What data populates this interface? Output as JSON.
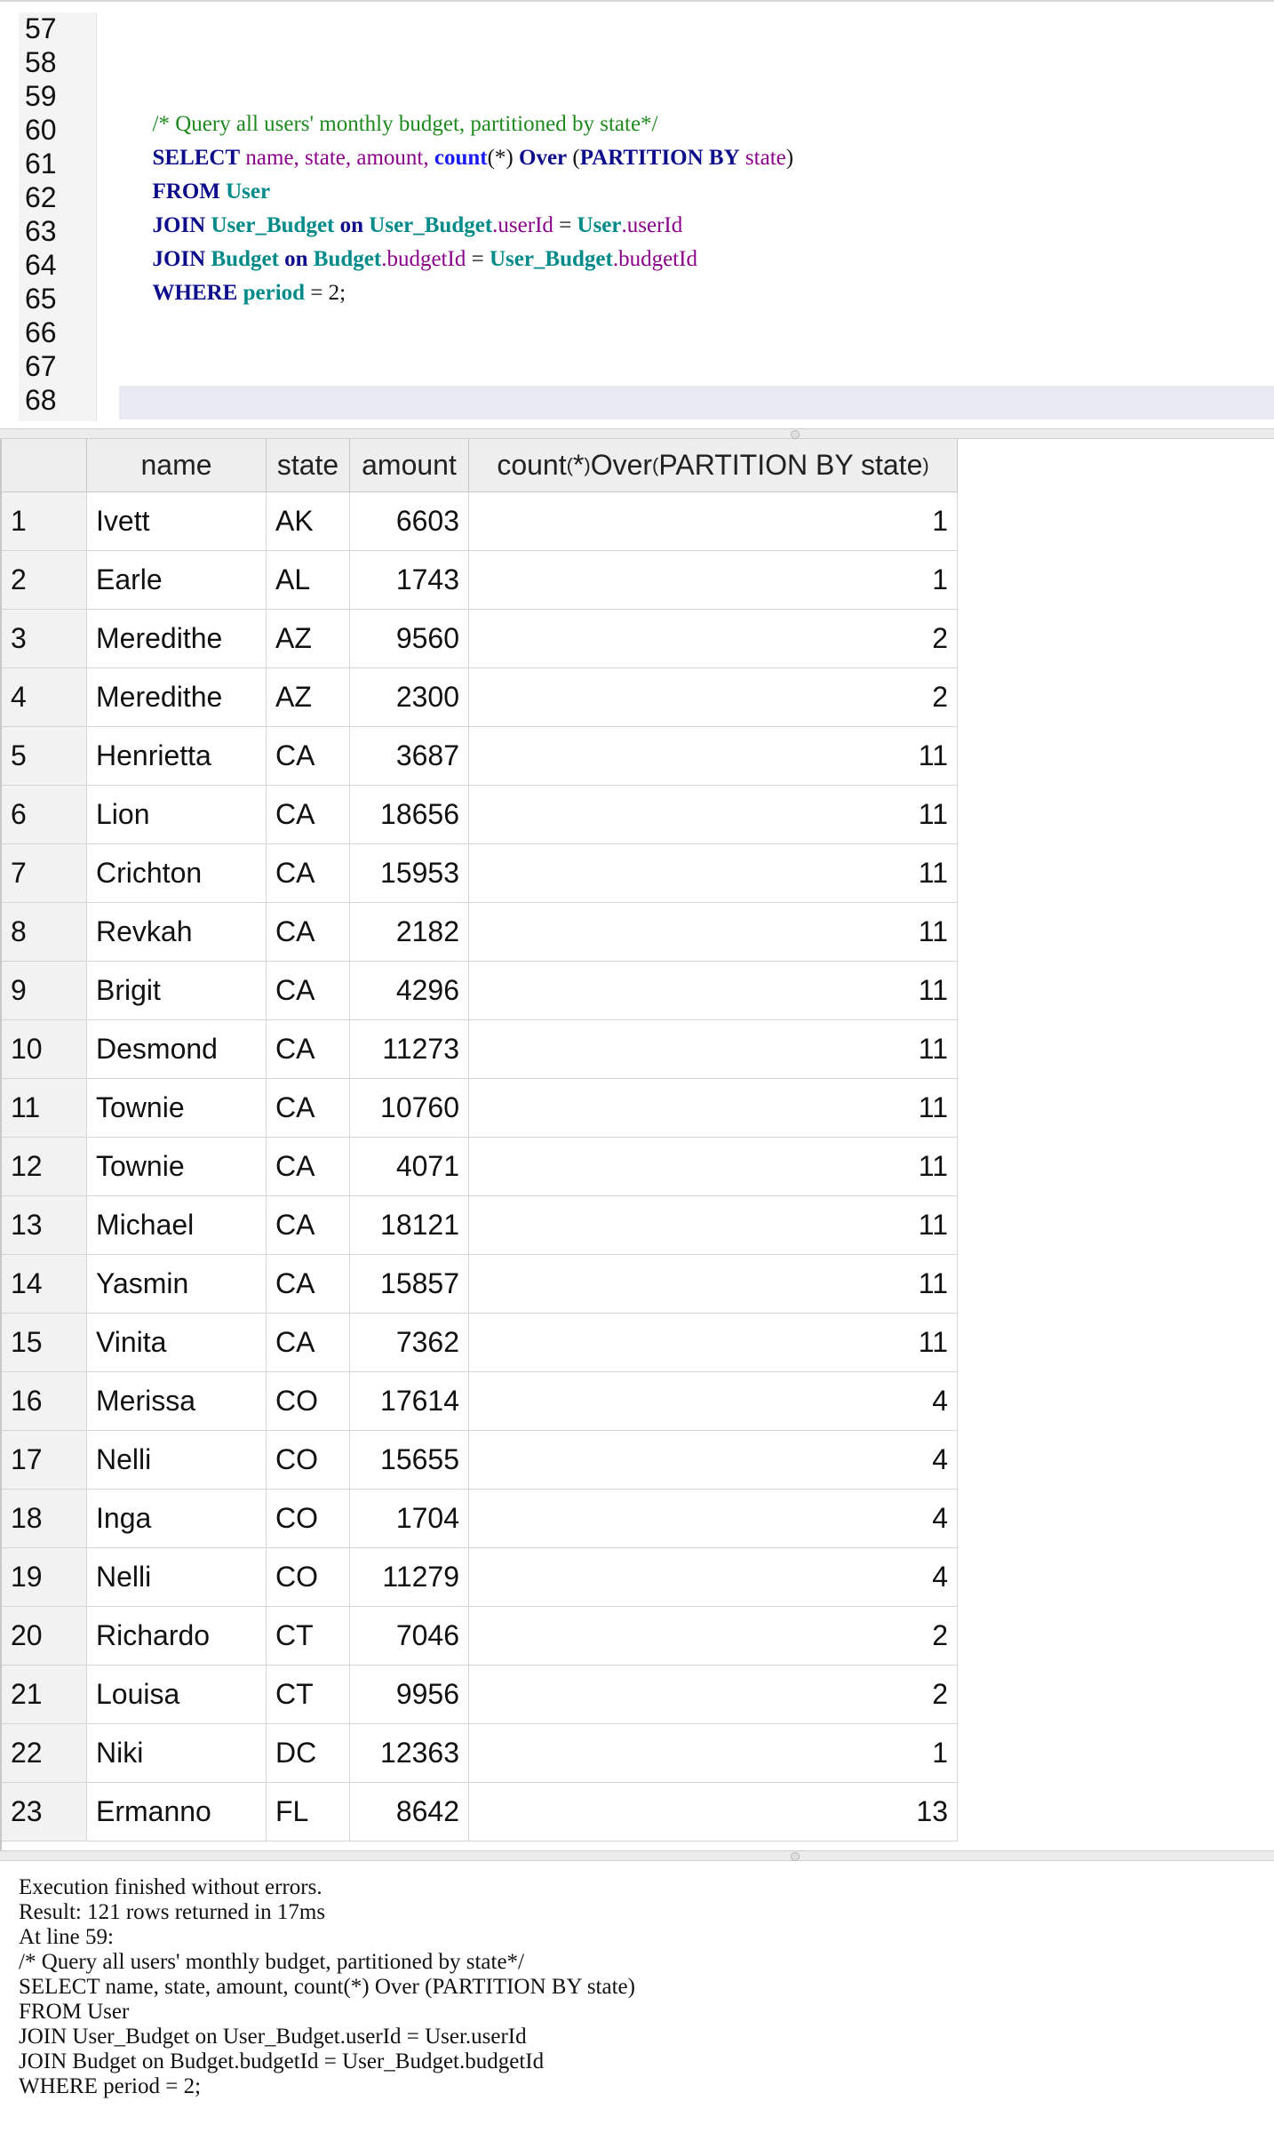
{
  "editor": {
    "line_numbers": [
      "57",
      "58",
      "59",
      "60",
      "61",
      "62",
      "63",
      "64",
      "65",
      "66",
      "67",
      "68"
    ],
    "code": {
      "comment": "/* Query all users' monthly budget, partitioned by state*/",
      "select_kw": "SELECT",
      "select_cols": " name, state, amount, ",
      "count_fn": "count",
      "count_args": "(*) ",
      "over_kw": "Over",
      "paren_open": " (",
      "partition_kw": "PARTITION BY",
      "partition_col": " state",
      "paren_close": ")",
      "from_kw": "FROM",
      "from_table": " User",
      "join_kw": "JOIN",
      "join1_table": " User_Budget",
      "on_kw": " on ",
      "join1_left_table": "User_Budget",
      "join1_left_col": ".userId",
      "eq": " = ",
      "join1_right_table": "User",
      "join1_right_col": ".userId",
      "join2_table": " Budget",
      "join2_left_table": "Budget",
      "join2_left_col": ".budgetId",
      "join2_right_table": "User_Budget",
      "join2_right_col": ".budgetId",
      "where_kw": "WHERE",
      "where_col": " period",
      "where_rest": " = 2;"
    }
  },
  "results": {
    "headers": {
      "name": "name",
      "state": "state",
      "amount": "amount",
      "count_a": "count",
      "count_b": "(",
      "count_c": "*",
      "count_d": ")",
      "count_e": " Over ",
      "count_f": "(",
      "count_g": " PARTITION BY state",
      "count_h": ")"
    },
    "rows": [
      {
        "n": "1",
        "name": "Ivett",
        "state": "AK",
        "amount": "6603",
        "count": "1"
      },
      {
        "n": "2",
        "name": "Earle",
        "state": "AL",
        "amount": "1743",
        "count": "1"
      },
      {
        "n": "3",
        "name": "Meredithe",
        "state": "AZ",
        "amount": "9560",
        "count": "2"
      },
      {
        "n": "4",
        "name": "Meredithe",
        "state": "AZ",
        "amount": "2300",
        "count": "2"
      },
      {
        "n": "5",
        "name": "Henrietta",
        "state": "CA",
        "amount": "3687",
        "count": "11"
      },
      {
        "n": "6",
        "name": "Lion",
        "state": "CA",
        "amount": "18656",
        "count": "11"
      },
      {
        "n": "7",
        "name": "Crichton",
        "state": "CA",
        "amount": "15953",
        "count": "11"
      },
      {
        "n": "8",
        "name": "Revkah",
        "state": "CA",
        "amount": "2182",
        "count": "11"
      },
      {
        "n": "9",
        "name": "Brigit",
        "state": "CA",
        "amount": "4296",
        "count": "11"
      },
      {
        "n": "10",
        "name": "Desmond",
        "state": "CA",
        "amount": "11273",
        "count": "11"
      },
      {
        "n": "11",
        "name": "Townie",
        "state": "CA",
        "amount": "10760",
        "count": "11"
      },
      {
        "n": "12",
        "name": "Townie",
        "state": "CA",
        "amount": "4071",
        "count": "11"
      },
      {
        "n": "13",
        "name": "Michael",
        "state": "CA",
        "amount": "18121",
        "count": "11"
      },
      {
        "n": "14",
        "name": "Yasmin",
        "state": "CA",
        "amount": "15857",
        "count": "11"
      },
      {
        "n": "15",
        "name": "Vinita",
        "state": "CA",
        "amount": "7362",
        "count": "11"
      },
      {
        "n": "16",
        "name": "Merissa",
        "state": "CO",
        "amount": "17614",
        "count": "4"
      },
      {
        "n": "17",
        "name": "Nelli",
        "state": "CO",
        "amount": "15655",
        "count": "4"
      },
      {
        "n": "18",
        "name": "Inga",
        "state": "CO",
        "amount": "1704",
        "count": "4"
      },
      {
        "n": "19",
        "name": "Nelli",
        "state": "CO",
        "amount": "11279",
        "count": "4"
      },
      {
        "n": "20",
        "name": "Richardo",
        "state": "CT",
        "amount": "7046",
        "count": "2"
      },
      {
        "n": "21",
        "name": "Louisa",
        "state": "CT",
        "amount": "9956",
        "count": "2"
      },
      {
        "n": "22",
        "name": "Niki",
        "state": "DC",
        "amount": "12363",
        "count": "1"
      },
      {
        "n": "23",
        "name": "Ermanno",
        "state": "FL",
        "amount": "8642",
        "count": "13"
      }
    ]
  },
  "message": {
    "lines": [
      "Execution finished without errors.",
      "Result: 121 rows returned in 17ms",
      "At line 59:",
      "/* Query all users' monthly budget, partitioned by state*/",
      "SELECT name, state, amount, count(*) Over (PARTITION BY state)",
      "FROM User",
      "JOIN User_Budget on User_Budget.userId = User.userId",
      "JOIN Budget on Budget.budgetId = User_Budget.budgetId",
      "WHERE period = 2;"
    ]
  }
}
